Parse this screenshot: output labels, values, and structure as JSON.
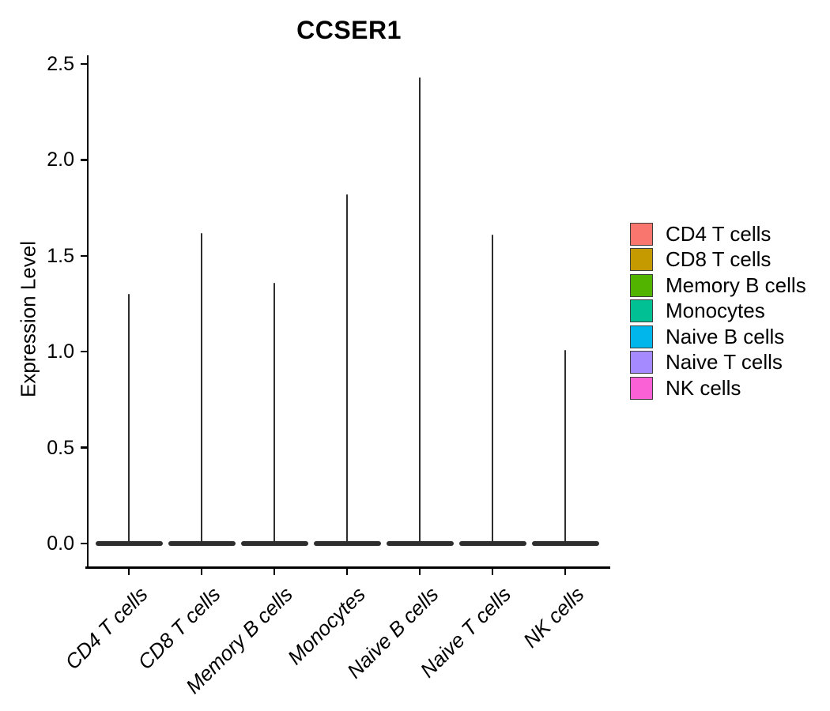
{
  "title": "CCSER1",
  "y_axis": {
    "label": "Expression Level",
    "tick_labels": [
      "0.0",
      "0.5",
      "1.0",
      "1.5",
      "2.0",
      "2.5"
    ]
  },
  "x_axis": {
    "tick_labels": [
      "CD4 T cells",
      "CD8 T cells",
      "Memory B cells",
      "Monocytes",
      "Naive B cells",
      "Naive T cells",
      "NK cells"
    ]
  },
  "legend": {
    "items": [
      {
        "label": "CD4 T cells",
        "color": "#F8766D"
      },
      {
        "label": "CD8 T cells",
        "color": "#C49A00"
      },
      {
        "label": "Memory B cells",
        "color": "#53B400"
      },
      {
        "label": "Monocytes",
        "color": "#00C094"
      },
      {
        "label": "Naive B cells",
        "color": "#00B6EB"
      },
      {
        "label": "Naive T cells",
        "color": "#A58AFF"
      },
      {
        "label": "NK cells",
        "color": "#FB61D7"
      }
    ]
  },
  "chart_data": {
    "type": "violin",
    "title": "CCSER1",
    "xlabel": "",
    "ylabel": "Expression Level",
    "ylim": [
      0,
      2.5
    ],
    "yticks": [
      0.0,
      0.5,
      1.0,
      1.5,
      2.0,
      2.5
    ],
    "grid": false,
    "legend_position": "right",
    "categories": [
      "CD4 T cells",
      "CD8 T cells",
      "Memory B cells",
      "Monocytes",
      "Naive B cells",
      "Naive T cells",
      "NK cells"
    ],
    "series": [
      {
        "name": "CD4 T cells",
        "fill": "#F8766D",
        "density_peak_value": 0.0,
        "max_expression": 1.3
      },
      {
        "name": "CD8 T cells",
        "fill": "#C49A00",
        "density_peak_value": 0.0,
        "max_expression": 1.62
      },
      {
        "name": "Memory B cells",
        "fill": "#53B400",
        "density_peak_value": 0.0,
        "max_expression": 1.36
      },
      {
        "name": "Monocytes",
        "fill": "#00C094",
        "density_peak_value": 0.0,
        "max_expression": 1.82
      },
      {
        "name": "Naive B cells",
        "fill": "#00B6EB",
        "density_peak_value": 0.0,
        "max_expression": 2.43
      },
      {
        "name": "Naive T cells",
        "fill": "#A58AFF",
        "density_peak_value": 0.0,
        "max_expression": 1.61
      },
      {
        "name": "NK cells",
        "fill": "#FB61D7",
        "density_peak_value": 0.0,
        "max_expression": 1.01
      }
    ],
    "shape_note": "Each violin is a thin vertical spike from 0 up to max_expression with a wide flat base at 0 (nearly all cells have zero expression)."
  }
}
